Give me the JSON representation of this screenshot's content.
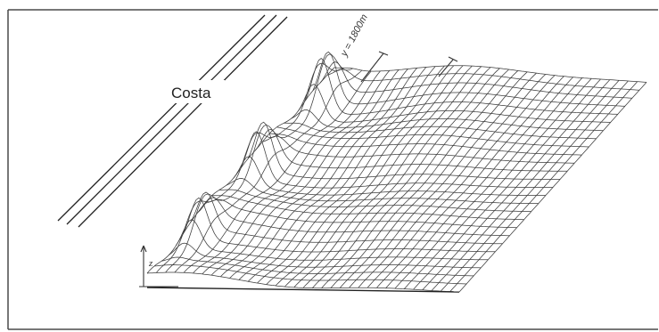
{
  "figure": {
    "coast_label": "Costa",
    "y_label": "y = 1800m",
    "z_label": "z",
    "colors": {
      "frame": "#4a4a4a",
      "mesh": "#3a3a3a",
      "background": "#ffffff"
    }
  }
}
